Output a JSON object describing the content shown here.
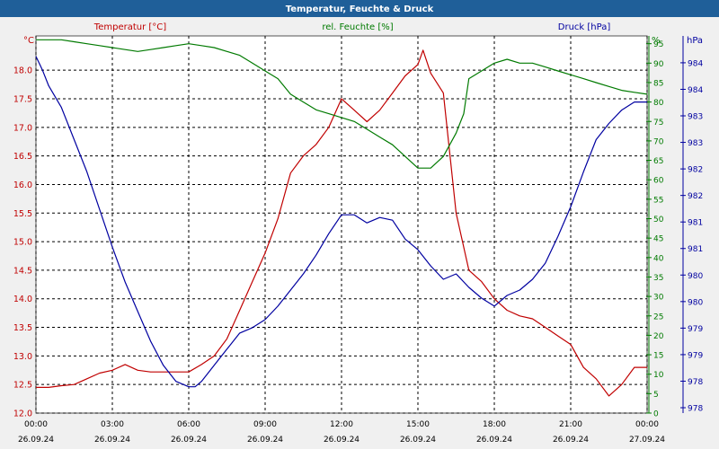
{
  "window": {
    "title": "Temperatur, Feuchte & Druck"
  },
  "colors": {
    "temperature": "#c00000",
    "humidity": "#007a00",
    "pressure": "#0000a0",
    "titlebar": "#1f5f99",
    "plot_bg": "#ffffff",
    "grid": "#000000"
  },
  "chart_data": {
    "type": "line",
    "title": "Temperatur, Feuchte & Druck",
    "grid": true,
    "x_ticks": [
      {
        "time": "00:00",
        "date": "26.09.24"
      },
      {
        "time": "03:00",
        "date": "26.09.24"
      },
      {
        "time": "06:00",
        "date": "26.09.24"
      },
      {
        "time": "09:00",
        "date": "26.09.24"
      },
      {
        "time": "12:00",
        "date": "26.09.24"
      },
      {
        "time": "15:00",
        "date": "26.09.24"
      },
      {
        "time": "18:00",
        "date": "26.09.24"
      },
      {
        "time": "21:00",
        "date": "26.09.24"
      },
      {
        "time": "00:00",
        "date": "27.09.24"
      }
    ],
    "x_range_hours": [
      0,
      24
    ],
    "axes": {
      "temperature": {
        "header": "Temperatur [°C]",
        "unit": "°C",
        "range": [
          12.0,
          18.6
        ],
        "ticks": [
          "18.0",
          "17.5",
          "17.0",
          "16.5",
          "16.0",
          "15.5",
          "15.0",
          "14.5",
          "14.0",
          "13.5",
          "13.0",
          "12.5",
          "12.0"
        ]
      },
      "humidity": {
        "header": "rel. Feuchte [%]",
        "unit": "%",
        "range": [
          0,
          97
        ],
        "ticks": [
          "95",
          "90",
          "85",
          "80",
          "75",
          "70",
          "65",
          "60",
          "55",
          "50",
          "45",
          "40",
          "35",
          "30",
          "25",
          "20",
          "15",
          "10",
          "5",
          "0"
        ]
      },
      "pressure": {
        "header": "Druck [hPa]",
        "unit": "hPa",
        "range": [
          977.46,
          984.48
        ],
        "ticks": [
          "984",
          "984",
          "983",
          "983",
          "982",
          "982",
          "981",
          "981",
          "980",
          "980",
          "979",
          "979",
          "978",
          "978"
        ]
      }
    },
    "series": [
      {
        "name": "Temperatur [°C]",
        "axis": "temperature",
        "x": [
          0,
          0.5,
          1,
          1.5,
          2,
          2.5,
          3,
          3.5,
          4,
          4.5,
          5,
          5.5,
          6,
          6.5,
          7,
          7.5,
          8,
          8.5,
          9,
          9.5,
          10,
          10.5,
          11,
          11.5,
          12,
          12.5,
          13,
          13.5,
          14,
          14.5,
          15,
          15.2,
          15.5,
          16,
          16.5,
          17,
          17.5,
          18,
          18.5,
          19,
          19.5,
          20,
          20.5,
          21,
          21.5,
          22,
          22.5,
          23,
          23.5,
          24
        ],
        "values": [
          12.45,
          12.45,
          12.48,
          12.5,
          12.6,
          12.7,
          12.75,
          12.85,
          12.75,
          12.72,
          12.72,
          12.72,
          12.72,
          12.85,
          13.0,
          13.3,
          13.8,
          14.3,
          14.8,
          15.4,
          16.2,
          16.5,
          16.7,
          17.0,
          17.5,
          17.3,
          17.1,
          17.3,
          17.6,
          17.9,
          18.1,
          18.35,
          17.95,
          17.6,
          15.5,
          14.5,
          14.3,
          14.0,
          13.8,
          13.7,
          13.65,
          13.5,
          13.35,
          13.2,
          12.8,
          12.6,
          12.3,
          12.5,
          12.8,
          12.8
        ]
      },
      {
        "name": "rel. Feuchte [%]",
        "axis": "humidity",
        "x": [
          0,
          0.5,
          1,
          1.5,
          2,
          2.5,
          3,
          3.5,
          4,
          4.5,
          5,
          5.5,
          6,
          6.5,
          7,
          7.5,
          8,
          8.5,
          9,
          9.5,
          10,
          10.5,
          11,
          11.5,
          12,
          12.5,
          13,
          13.5,
          14,
          14.5,
          15,
          15.5,
          16,
          16.5,
          16.8,
          17,
          17.5,
          18,
          18.5,
          19,
          19.5,
          20,
          20.5,
          21,
          21.5,
          22,
          22.5,
          23,
          23.5,
          24
        ],
        "values": [
          96,
          96,
          96,
          95.5,
          95,
          94.5,
          94,
          93.5,
          93,
          93.5,
          94,
          94.5,
          95,
          94.5,
          94,
          93,
          92,
          90,
          88,
          86,
          82,
          80,
          78,
          77,
          76,
          75,
          73,
          71,
          69,
          66,
          63,
          63,
          66,
          72,
          77,
          86,
          88,
          90,
          91,
          90,
          90,
          89,
          88,
          87,
          86,
          85,
          84,
          83,
          82.5,
          82
        ]
      },
      {
        "name": "Druck [hPa]",
        "axis": "pressure",
        "x": [
          0,
          0.25,
          0.5,
          1,
          1.5,
          2,
          2.5,
          3,
          3.5,
          4,
          4.5,
          5,
          5.5,
          6,
          6.25,
          6.5,
          7,
          7.5,
          8,
          8.5,
          9,
          9.5,
          10,
          10.5,
          11,
          11.5,
          12,
          12.5,
          13,
          13.5,
          14,
          14.5,
          15,
          15.5,
          16,
          16.5,
          17,
          17.5,
          18,
          18.5,
          19,
          19.5,
          20,
          20.5,
          21,
          21.5,
          22,
          22.5,
          23,
          23.5,
          24
        ],
        "values": [
          984.1,
          983.85,
          983.55,
          983.15,
          982.55,
          981.95,
          981.25,
          980.55,
          979.9,
          979.35,
          978.8,
          978.35,
          978.05,
          977.95,
          977.95,
          978.05,
          978.35,
          978.65,
          978.95,
          979.05,
          979.2,
          979.45,
          979.75,
          980.05,
          980.4,
          980.8,
          981.15,
          981.15,
          981.0,
          981.1,
          981.05,
          980.7,
          980.5,
          980.2,
          979.95,
          980.05,
          979.8,
          979.6,
          979.45,
          979.65,
          979.75,
          979.95,
          980.25,
          980.75,
          981.3,
          981.95,
          982.55,
          982.85,
          983.1,
          983.25,
          983.25
        ]
      }
    ]
  }
}
